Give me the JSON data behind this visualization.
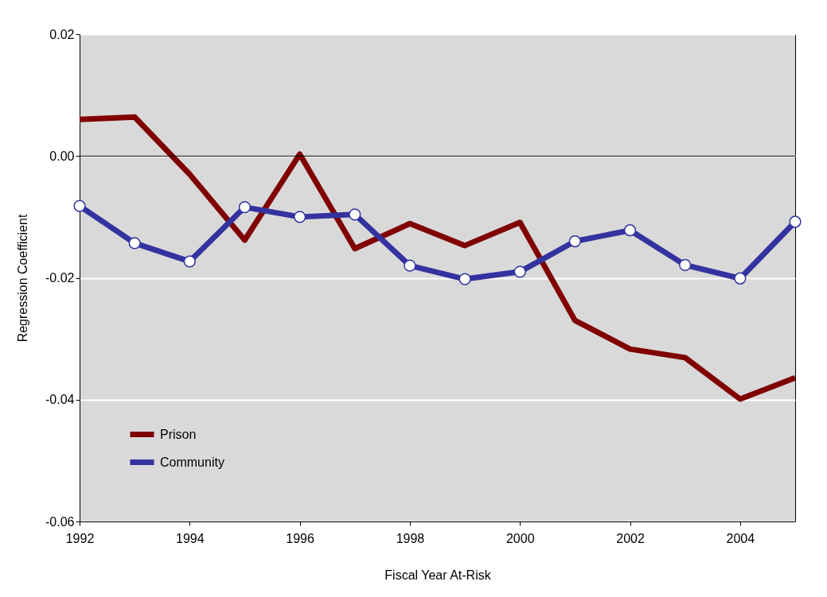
{
  "chart_data": {
    "type": "line",
    "xlabel": "Fiscal Year At-Risk",
    "ylabel": "Regression Coefficient",
    "x": [
      1992,
      1993,
      1994,
      1995,
      1996,
      1997,
      1998,
      1999,
      2000,
      2001,
      2002,
      2003,
      2004,
      2005
    ],
    "series": [
      {
        "name": "Prison",
        "color": "#800000",
        "marker": "none",
        "values": [
          0.006,
          0.0064,
          -0.003,
          -0.0138,
          0.0003,
          -0.0152,
          -0.0111,
          -0.0147,
          -0.0109,
          -0.027,
          -0.0317,
          -0.0331,
          -0.0399,
          -0.0364
        ]
      },
      {
        "name": "Community",
        "color": "#3333a0",
        "marker": "circle",
        "values": [
          -0.0082,
          -0.0143,
          -0.0173,
          -0.0084,
          -0.01,
          -0.0096,
          -0.018,
          -0.0202,
          -0.019,
          -0.014,
          -0.0122,
          -0.0179,
          -0.0201,
          -0.0108
        ]
      }
    ],
    "xlim": [
      1992,
      2005
    ],
    "xticks": [
      1992,
      1994,
      1996,
      1998,
      2000,
      2002,
      2004
    ],
    "ylim": [
      -0.06,
      0.02
    ],
    "yticks": [
      {
        "value": -0.06,
        "label": "-0.06"
      },
      {
        "value": -0.04,
        "label": "-0.04"
      },
      {
        "value": -0.02,
        "label": "-0.02"
      },
      {
        "value": 0,
        "label": "0.00"
      },
      {
        "value": 0.02,
        "label": "0.02"
      }
    ],
    "ref_lines": [
      {
        "axis": "y",
        "value": 0,
        "color": "#000000"
      }
    ],
    "grid": "y",
    "legend": "bottom left",
    "line_style": "solid"
  }
}
